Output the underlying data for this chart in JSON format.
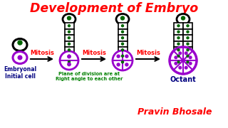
{
  "title": "Development of Embryo",
  "title_color": "#FF0000",
  "bg_color": "#FFFFFF",
  "label1": "Embryonal\nInitial cell",
  "label2": "Plane of division are at\nRight angle to each other",
  "label3": "Octant",
  "label4": "Pravin Bhosale",
  "mitosis_color": "#FF0000",
  "label1_color": "#000080",
  "label2_color": "#008000",
  "label3_color": "#000080",
  "label4_color": "#FF0000",
  "arrow_color": "#000000",
  "cell_purple": "#9900CC",
  "cell_black": "#000000",
  "dot_green": "#006600",
  "dot_purple": "#9900CC"
}
